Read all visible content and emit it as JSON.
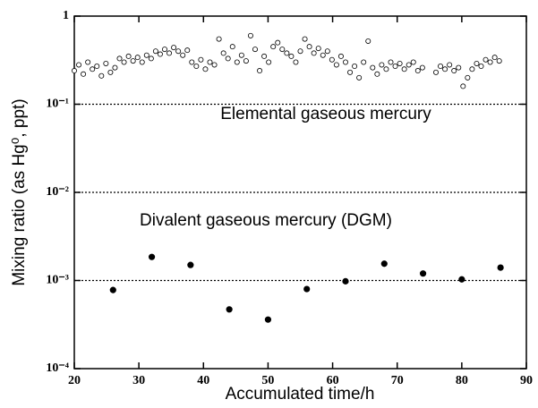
{
  "chart_data": {
    "type": "scatter",
    "xlabel": "Accumulated time/h",
    "ylabel": "Mixing ratio (as Hg⁰, ppt)",
    "xlim": [
      20,
      90
    ],
    "xticks": [
      20,
      30,
      40,
      50,
      60,
      70,
      80,
      90
    ],
    "ylim": [
      0.0001,
      1
    ],
    "log_y": true,
    "grid": true,
    "yticks": [
      {
        "value": 0.0001,
        "label": "10⁻⁴"
      },
      {
        "value": 0.001,
        "label": "10⁻³"
      },
      {
        "value": 0.01,
        "label": "10⁻²"
      },
      {
        "value": 0.1,
        "label": "10⁻¹"
      },
      1
    ],
    "series": [
      {
        "name": "Elemental gaseous mercury",
        "color": "#000000",
        "marker": "open",
        "x": [
          20,
          20.7,
          21.4,
          22.1,
          22.8,
          23.5,
          24.2,
          24.9,
          25.6,
          26.3,
          27,
          27.7,
          28.4,
          29.1,
          29.8,
          30.5,
          31.2,
          31.9,
          32.6,
          33.3,
          34,
          34.7,
          35.4,
          36.1,
          36.8,
          37.5,
          38.2,
          38.9,
          39.6,
          40.3,
          41,
          41.7,
          42.4,
          43.1,
          43.8,
          44.5,
          45.2,
          45.9,
          46.6,
          47.3,
          48,
          48.7,
          49.4,
          50.1,
          50.8,
          51.5,
          52.2,
          52.9,
          53.6,
          54.3,
          55,
          55.7,
          56.4,
          57.1,
          57.8,
          58.5,
          59.2,
          59.9,
          60.6,
          61.3,
          62,
          62.7,
          63.4,
          64.1,
          64.8,
          65.5,
          66.2,
          66.9,
          67.6,
          68.3,
          69,
          69.7,
          70.4,
          71.1,
          71.8,
          72.5,
          73.2,
          73.9,
          76,
          76.7,
          77.4,
          78.1,
          78.8,
          79.5,
          80.2,
          80.9,
          81.6,
          82.3,
          83,
          83.7,
          84.4,
          85.1,
          85.8
        ],
        "values": [
          0.24,
          0.28,
          0.22,
          0.3,
          0.25,
          0.27,
          0.21,
          0.29,
          0.23,
          0.26,
          0.33,
          0.3,
          0.35,
          0.31,
          0.34,
          0.3,
          0.36,
          0.33,
          0.4,
          0.37,
          0.42,
          0.38,
          0.44,
          0.4,
          0.36,
          0.41,
          0.3,
          0.27,
          0.32,
          0.25,
          0.3,
          0.28,
          0.55,
          0.38,
          0.33,
          0.45,
          0.3,
          0.36,
          0.31,
          0.6,
          0.42,
          0.24,
          0.35,
          0.3,
          0.45,
          0.5,
          0.42,
          0.38,
          0.35,
          0.3,
          0.4,
          0.55,
          0.45,
          0.38,
          0.43,
          0.36,
          0.4,
          0.32,
          0.28,
          0.35,
          0.3,
          0.23,
          0.27,
          0.2,
          0.3,
          0.52,
          0.26,
          0.22,
          0.28,
          0.25,
          0.3,
          0.27,
          0.29,
          0.25,
          0.28,
          0.3,
          0.24,
          0.26,
          0.23,
          0.27,
          0.25,
          0.28,
          0.24,
          0.26,
          0.16,
          0.2,
          0.25,
          0.29,
          0.27,
          0.32,
          0.3,
          0.34,
          0.31
        ]
      },
      {
        "name": "Divalent gaseous mercury (DGM)",
        "color": "#000000",
        "marker": "filled",
        "x": [
          26,
          32,
          38,
          44,
          50,
          56,
          62,
          68,
          74,
          80,
          86
        ],
        "values": [
          0.00078,
          0.00185,
          0.0015,
          0.00047,
          0.00036,
          0.0008,
          0.00098,
          0.00155,
          0.0012,
          0.00103,
          0.0014
        ]
      }
    ]
  }
}
